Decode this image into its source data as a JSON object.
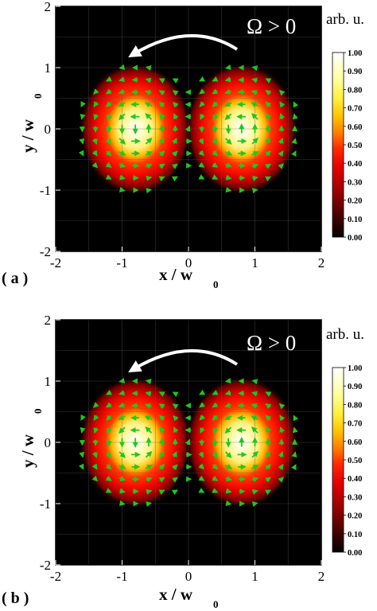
{
  "chart_data": [
    {
      "type": "heatmap",
      "panel_label": "( a )",
      "annotation": "Ω > 0",
      "rotation_direction": "counter-clockwise",
      "xlabel": "x / w",
      "xlabel_sub": "0",
      "ylabel": "y / w",
      "ylabel_sub": "0",
      "xlim": [
        -2,
        2
      ],
      "ylim": [
        -2,
        2
      ],
      "xticks": [
        "-2",
        "-1",
        "0",
        "1",
        "2"
      ],
      "yticks": [
        "2",
        "1",
        "0",
        "-1",
        "-2"
      ],
      "grid": true,
      "lobes": [
        {
          "center": [
            -0.8,
            0.0
          ],
          "peak": 1.0,
          "width_x": 0.5,
          "width_y": 0.6
        },
        {
          "center": [
            0.8,
            0.0
          ],
          "peak": 1.0,
          "width_x": 0.5,
          "width_y": 0.6
        }
      ],
      "vector_field": {
        "color": "#1ec81e",
        "grid_step": 0.2,
        "description_from_image": "green arrows"
      },
      "colorbar": {
        "unit_label": "arb. u.",
        "ticks": [
          "1.00",
          "0.90",
          "0.80",
          "0.70",
          "0.60",
          "0.50",
          "0.40",
          "0.30",
          "0.20",
          "0.10",
          "0.00"
        ],
        "range": [
          0,
          1
        ],
        "colormap": "hot"
      }
    },
    {
      "type": "heatmap",
      "panel_label": "( b )",
      "annotation": "Ω > 0",
      "rotation_direction": "counter-clockwise",
      "xlabel": "x / w",
      "xlabel_sub": "0",
      "ylabel": "y / w",
      "ylabel_sub": "0",
      "xlim": [
        -2,
        2
      ],
      "ylim": [
        -2,
        2
      ],
      "xticks": [
        "-2",
        "-1",
        "0",
        "1",
        "2"
      ],
      "yticks": [
        "2",
        "1",
        "0",
        "-1",
        "-2"
      ],
      "grid": true,
      "lobes": [
        {
          "center": [
            -0.8,
            0.0
          ],
          "peak": 1.0,
          "width_x": 0.5,
          "width_y": 0.6
        },
        {
          "center": [
            0.8,
            0.0
          ],
          "peak": 1.0,
          "width_x": 0.5,
          "width_y": 0.6
        }
      ],
      "vector_field": {
        "color": "#1ec81e",
        "grid_step": 0.2
      },
      "colorbar": {
        "unit_label": "arb. u.",
        "ticks": [
          "1.00",
          "0.90",
          "0.80",
          "0.70",
          "0.60",
          "0.50",
          "0.40",
          "0.30",
          "0.20",
          "0.10",
          "0.00"
        ],
        "range": [
          0,
          1
        ],
        "colormap": "hot"
      }
    }
  ],
  "colors": {
    "background": "#000000",
    "arrow": "#1ec81e",
    "annotation": "#ffffff",
    "grid": "#5a5a5a"
  }
}
